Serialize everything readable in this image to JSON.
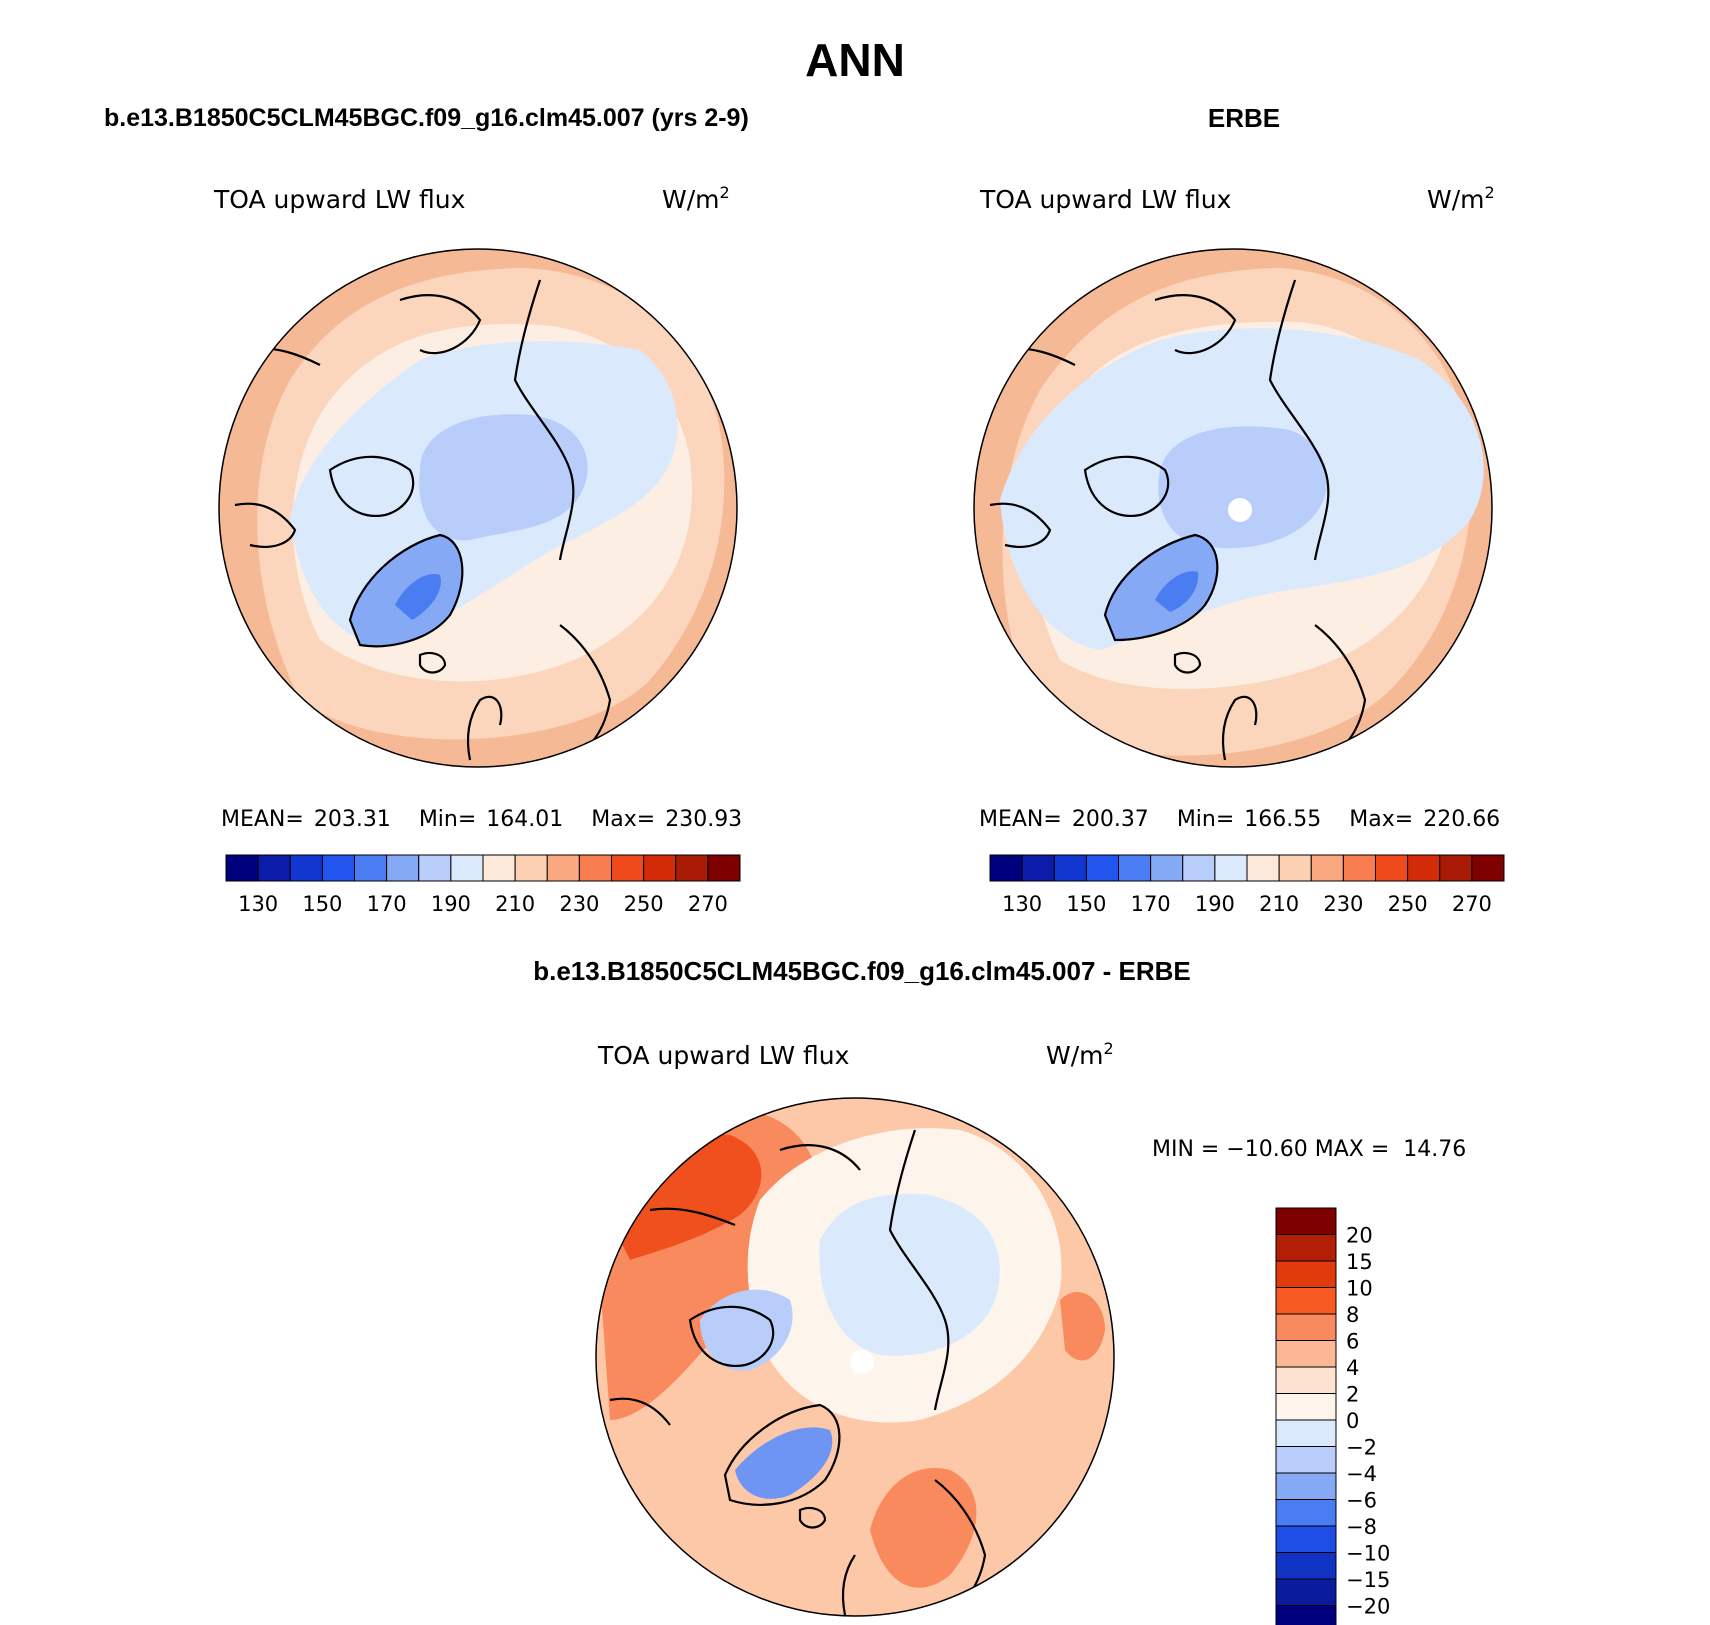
{
  "figure_title": "ANN",
  "panels": {
    "model": {
      "header": "b.e13.B1850C5CLM45BGC.f09_g16.clm45.007 (yrs 2-9)",
      "variable": "TOA upward LW flux",
      "units": "W/m",
      "units_exponent": "2",
      "stats": {
        "mean_label": "MEAN=",
        "mean": "203.31",
        "min_label": "Min=",
        "min": "164.01",
        "max_label": "Max=",
        "max": "230.93"
      }
    },
    "obs": {
      "header": "ERBE",
      "variable": "TOA upward LW flux",
      "units": "W/m",
      "units_exponent": "2",
      "stats": {
        "mean_label": "MEAN=",
        "mean": "200.37",
        "min_label": "Min=",
        "min": "166.55",
        "max_label": "Max=",
        "max": "220.66"
      }
    },
    "diff": {
      "header": "b.e13.B1850C5CLM45BGC.f09_g16.clm45.007 - ERBE",
      "variable": "TOA upward LW flux",
      "units": "W/m",
      "units_exponent": "2",
      "minmax": "MIN = −10.60 MAX =  14.76"
    }
  },
  "abs_colorbar": {
    "labels": [
      "130",
      "150",
      "170",
      "190",
      "210",
      "230",
      "250",
      "270"
    ],
    "colors": [
      "#00007f",
      "#0a1ca8",
      "#1137d0",
      "#2255ee",
      "#4a7cf2",
      "#86a9f6",
      "#b8cdfa",
      "#dbe9fd",
      "#fde9d9",
      "#fcd0b3",
      "#f9a880",
      "#f77d4f",
      "#ee4a1c",
      "#d32a07",
      "#a81a04",
      "#7f0000"
    ]
  },
  "diff_colorbar": {
    "labels": [
      "20",
      "15",
      "10",
      "8",
      "6",
      "4",
      "2",
      "0",
      "−2",
      "−4",
      "−6",
      "−8",
      "−10",
      "−15",
      "−20"
    ],
    "colors_top_to_bottom": [
      "#7f0000",
      "#b31e06",
      "#e13a0d",
      "#f75a22",
      "#f98a5e",
      "#fcb896",
      "#fde3cf",
      "#fdf5ec",
      "#dbe9fd",
      "#b8cdfa",
      "#86a9f6",
      "#4a7cf2",
      "#1f4ee6",
      "#1133c4",
      "#0a1c9e",
      "#00007f"
    ]
  },
  "map_colors": {
    "outer": "#f6b995",
    "ring2": "#fbd6bd",
    "ring3": "#fdeee3",
    "ice_light": "#dbe9fd",
    "ice_mid": "#b8cdfa",
    "ice_deep": "#86a9f6",
    "ice_core": "#4a7cf2",
    "diff_warm_strong": "#f0501e",
    "diff_warm": "#f98a5e",
    "diff_warm_light": "#fcc8a8",
    "diff_neutral": "#fdf5ec",
    "diff_cool": "#dbe9fd",
    "diff_cool2": "#b8cdfa",
    "diff_cool3": "#6e95f4"
  }
}
